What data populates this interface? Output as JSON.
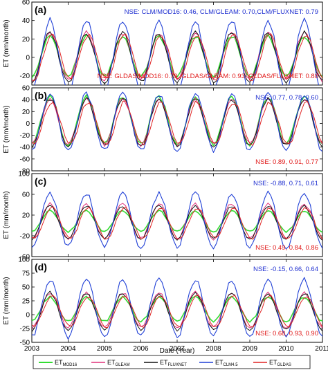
{
  "colors": {
    "MOD16": "#33dd33",
    "GLEAM": "#e0307a",
    "FLUXNET": "#111111",
    "CLM45": "#1f3fd6",
    "GLDAS": "#e02222",
    "nse_blue": "#1f2fd0",
    "nse_red": "#e01818"
  },
  "xlabel": "Date (Year)",
  "legend": [
    {
      "base": "ET",
      "sub": "MOD16",
      "series": "MOD16"
    },
    {
      "base": "ET",
      "sub": "GLEAM",
      "series": "GLEAM"
    },
    {
      "base": "ET",
      "sub": "FLUXNET",
      "series": "FLUXNET"
    },
    {
      "base": "ET",
      "sub": "CLM4.5",
      "series": "CLM45"
    },
    {
      "base": "ET",
      "sub": "GLDAS",
      "series": "GLDAS"
    }
  ],
  "chart_data": [
    {
      "type": "line",
      "panel_label": "(a)",
      "ylabel": "ET (mm/month)",
      "xlim": [
        2003,
        2011
      ],
      "ylim": [
        -30,
        60
      ],
      "yticks": [
        -20,
        0,
        20,
        40,
        60
      ],
      "xticks": [
        2003,
        2004,
        2005,
        2006,
        2007,
        2008,
        2009,
        2010,
        2011
      ],
      "nse_top": "NSE: CLM/MOD16: 0.46, CLM/GLEAM: 0.70,CLM/FLUXNET: 0.79",
      "nse_bottom": "NSE: GLDAS/MOD16: 0.79, GLDAS/GLEAM: 0.93, GLDAS/FLUXNET: 0.88",
      "series_params": {
        "MOD16": {
          "amp": 22,
          "offset": 1,
          "phase": 0.0
        },
        "GLEAM": {
          "amp": 26,
          "offset": 1,
          "phase": 0.0
        },
        "FLUXNET": {
          "amp": 27,
          "offset": 0,
          "phase": 0.0
        },
        "CLM45": {
          "amp": 38,
          "offset": 2,
          "phase": 0.0
        },
        "GLDAS": {
          "amp": 24,
          "offset": 0,
          "phase": 0.05
        }
      }
    },
    {
      "type": "line",
      "panel_label": "(b)",
      "ylabel": "ET (mm/month)",
      "xlim": [
        2003,
        2011
      ],
      "ylim": [
        -80,
        60
      ],
      "yticks": [
        -80,
        -60,
        -40,
        -20,
        0,
        20,
        40,
        60
      ],
      "xticks": [
        2003,
        2004,
        2005,
        2006,
        2007,
        2008,
        2009,
        2010,
        2011
      ],
      "nse_top": "NSE: 0.77, 0.78, 0.60",
      "nse_bottom": "NSE: 0.89, 0.91, 0.77",
      "series_params": {
        "MOD16": {
          "amp": 40,
          "offset": 5,
          "phase": 0.0
        },
        "GLEAM": {
          "amp": 38,
          "offset": 2,
          "phase": 0.0
        },
        "FLUXNET": {
          "amp": 40,
          "offset": 2,
          "phase": 0.0
        },
        "CLM45": {
          "amp": 48,
          "offset": 2,
          "phase": 0.0
        },
        "GLDAS": {
          "amp": 36,
          "offset": 0,
          "phase": 0.05
        }
      }
    },
    {
      "type": "line",
      "panel_label": "(c)",
      "ylabel": "ET (mm/month)",
      "xlim": [
        2003,
        2011
      ],
      "ylim": [
        -60,
        100
      ],
      "yticks": [
        -60,
        -20,
        20,
        60,
        100
      ],
      "xticks": [
        2003,
        2004,
        2005,
        2006,
        2007,
        2008,
        2009,
        2010,
        2011
      ],
      "nse_top": "NSE: -0.88, 0.71, 0.61",
      "nse_bottom": "NSE: 0.49, 0.84, 0.86",
      "series_params": {
        "MOD16": {
          "amp": 20,
          "offset": 8,
          "phase": 0.0
        },
        "GLEAM": {
          "amp": 34,
          "offset": 8,
          "phase": 0.0
        },
        "FLUXNET": {
          "amp": 32,
          "offset": 6,
          "phase": 0.0
        },
        "CLM45": {
          "amp": 52,
          "offset": 10,
          "phase": 0.0
        },
        "GLDAS": {
          "amp": 30,
          "offset": 4,
          "phase": 0.05
        }
      }
    },
    {
      "type": "line",
      "panel_label": "(d)",
      "ylabel": "ET (mm/month)",
      "xlim": [
        2003,
        2011
      ],
      "ylim": [
        -50,
        100
      ],
      "yticks": [
        -50,
        -25,
        0,
        25,
        50,
        75,
        100
      ],
      "xticks": [
        2003,
        2004,
        2005,
        2006,
        2007,
        2008,
        2009,
        2010,
        2011
      ],
      "xticklabels": [
        "2003",
        "2004",
        "2005",
        "2006",
        "2007",
        "2008",
        "2009",
        "2010",
        "2011"
      ],
      "nse_top": "NSE: -0.15, 0.66, 0.64",
      "nse_bottom": "NSE: 0.68, 0.93, 0.90",
      "series_params": {
        "MOD16": {
          "amp": 22,
          "offset": 10,
          "phase": 0.0
        },
        "GLEAM": {
          "amp": 32,
          "offset": 8,
          "phase": 0.0
        },
        "FLUXNET": {
          "amp": 34,
          "offset": 6,
          "phase": 0.0
        },
        "CLM45": {
          "amp": 52,
          "offset": 12,
          "phase": 0.0
        },
        "GLDAS": {
          "amp": 28,
          "offset": 6,
          "phase": 0.05
        }
      }
    }
  ]
}
